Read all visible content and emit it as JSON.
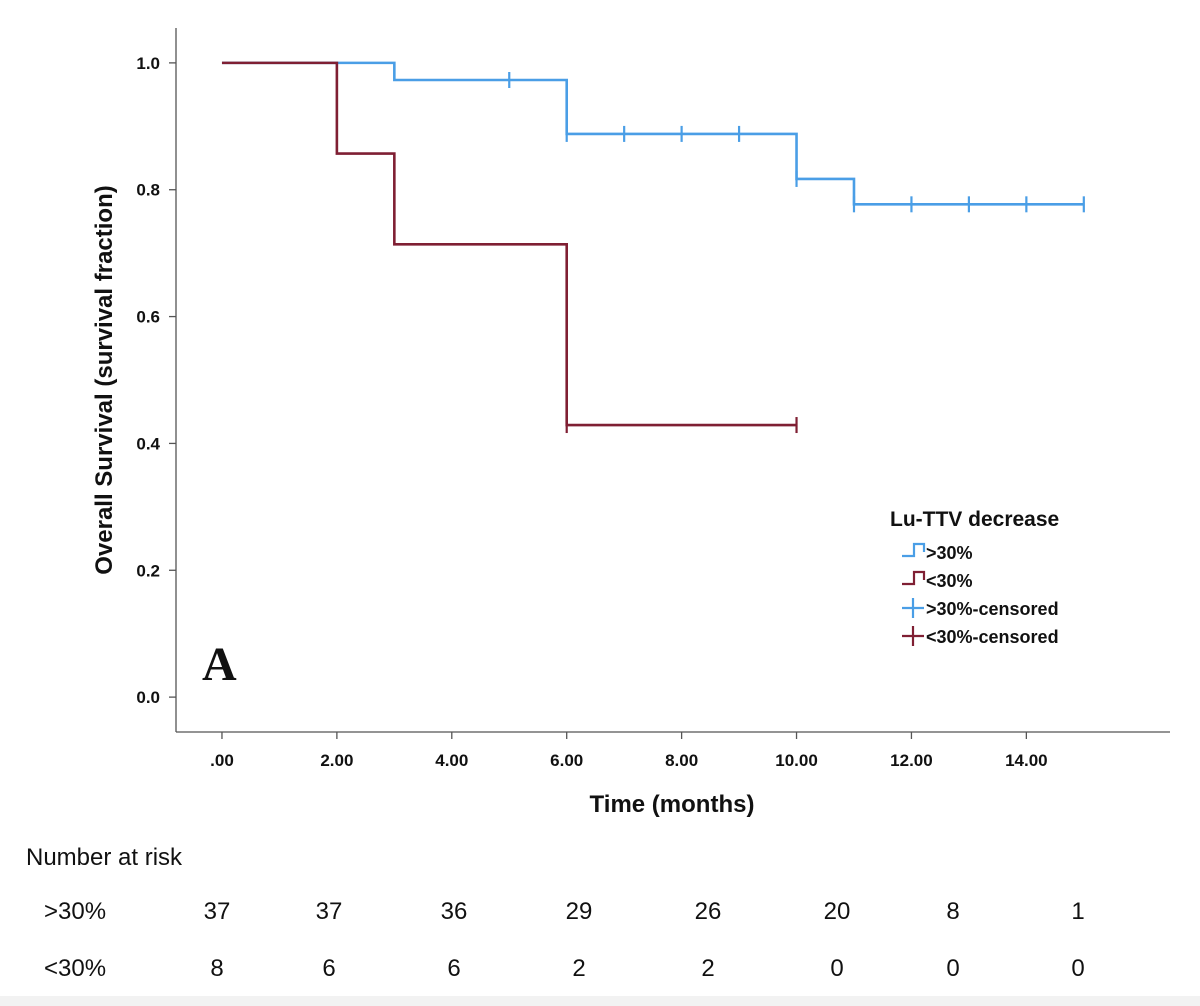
{
  "chart_data": {
    "type": "line",
    "subtype": "kaplan-meier-step",
    "panel_label": "A",
    "xlabel": "Time (months)",
    "ylabel": "Overall Survival (survival fraction)",
    "xlim": [
      -0.8,
      16.5
    ],
    "ylim": [
      -0.055,
      1.055
    ],
    "x_ticks": [
      0,
      2,
      4,
      6,
      8,
      10,
      12,
      14
    ],
    "x_tick_labels": [
      ".00",
      "2.00",
      "4.00",
      "6.00",
      "8.00",
      "10.00",
      "12.00",
      "14.00"
    ],
    "y_ticks": [
      0.0,
      0.2,
      0.4,
      0.6,
      0.8,
      1.0
    ],
    "y_tick_labels": [
      "0.0",
      "0.2",
      "0.4",
      "0.6",
      "0.8",
      "1.0"
    ],
    "grid": false,
    "legend": {
      "title": "Lu-TTV decrease",
      "placement": "right-middle",
      "entries": [
        ">30%",
        "<30%",
        ">30%-censored",
        "<30%-censored"
      ]
    },
    "series": [
      {
        "name": ">30%",
        "color": "#4a9ee6",
        "steps": [
          [
            0,
            1.0
          ],
          [
            3,
            0.973
          ],
          [
            6,
            0.888
          ],
          [
            10,
            0.817
          ],
          [
            11,
            0.777
          ],
          [
            15,
            0.777
          ]
        ],
        "censored": [
          [
            5,
            0.973
          ],
          [
            6,
            0.888
          ],
          [
            7,
            0.888
          ],
          [
            8,
            0.888
          ],
          [
            9,
            0.888
          ],
          [
            10,
            0.817
          ],
          [
            11,
            0.777
          ],
          [
            12,
            0.777
          ],
          [
            13,
            0.777
          ],
          [
            14,
            0.777
          ],
          [
            15,
            0.777
          ]
        ]
      },
      {
        "name": "<30%",
        "color": "#7f1f33",
        "steps": [
          [
            0,
            1.0
          ],
          [
            2,
            0.857
          ],
          [
            3,
            0.714
          ],
          [
            6,
            0.429
          ],
          [
            10,
            0.429
          ]
        ],
        "censored": [
          [
            6,
            0.429
          ],
          [
            10,
            0.429
          ]
        ]
      }
    ]
  },
  "risk_table": {
    "title": "Number at risk",
    "rows": [
      {
        "label": ">30%",
        "values": [
          "37",
          "37",
          "36",
          "29",
          "26",
          "20",
          "8",
          "1"
        ]
      },
      {
        "label": "<30%",
        "values": [
          "8",
          "6",
          "6",
          "2",
          "2",
          "0",
          "0",
          "0"
        ]
      }
    ]
  }
}
